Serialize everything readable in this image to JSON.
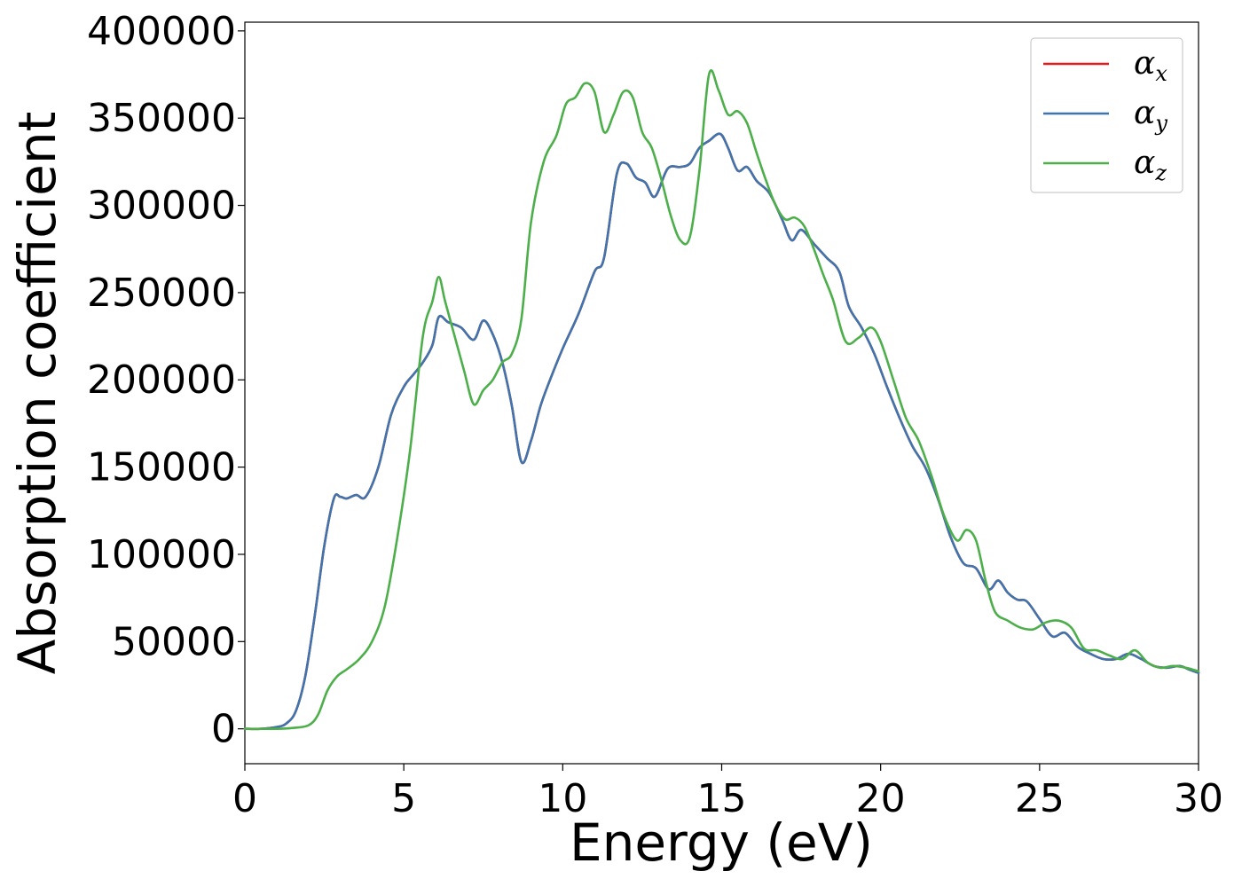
{
  "chart_data": {
    "type": "line",
    "title": "",
    "xlabel": "Energy (eV)",
    "ylabel": "Absorption coefficient",
    "xlim": [
      0,
      30
    ],
    "ylim": [
      -20000,
      405000
    ],
    "xticks": [
      0,
      5,
      10,
      15,
      20,
      25,
      30
    ],
    "xtick_labels": [
      "0",
      "5",
      "10",
      "15",
      "20",
      "25",
      "30"
    ],
    "yticks": [
      0,
      50000,
      100000,
      150000,
      200000,
      250000,
      300000,
      350000,
      400000
    ],
    "ytick_labels": [
      "0",
      "50000",
      "100000",
      "150000",
      "200000",
      "250000",
      "300000",
      "350000",
      "400000"
    ],
    "grid": false,
    "legend_position": "top-right",
    "series": [
      {
        "name": "αx",
        "symbol": "α",
        "subscript": "x",
        "color": "#e41a1c",
        "x": [
          0,
          0.5,
          1,
          1.3,
          1.6,
          1.9,
          2.2,
          2.5,
          2.8,
          3.0,
          3.2,
          3.5,
          3.8,
          4.2,
          4.6,
          5.0,
          5.3,
          5.6,
          5.9,
          6.1,
          6.4,
          6.8,
          7.2,
          7.5,
          7.8,
          8.1,
          8.4,
          8.7,
          9.0,
          9.3,
          9.6,
          10.0,
          10.5,
          11.0,
          11.3,
          11.7,
          12.0,
          12.3,
          12.6,
          12.9,
          13.3,
          13.7,
          14.0,
          14.3,
          14.6,
          14.95,
          15.2,
          15.5,
          15.8,
          16.1,
          16.5,
          16.9,
          17.2,
          17.5,
          17.9,
          18.3,
          18.7,
          19.0,
          19.4,
          19.8,
          20.2,
          20.6,
          21.0,
          21.4,
          21.8,
          22.2,
          22.6,
          23.0,
          23.4,
          23.7,
          24.0,
          24.3,
          24.6,
          25.0,
          25.4,
          25.8,
          26.2,
          26.6,
          27.0,
          27.4,
          27.8,
          28.2,
          28.6,
          29.0,
          29.4,
          29.7,
          30.0
        ],
        "y": [
          0,
          0,
          1000,
          3000,
          10000,
          30000,
          65000,
          105000,
          132000,
          133000,
          132000,
          134000,
          133000,
          150000,
          180000,
          196000,
          203000,
          210000,
          220000,
          236000,
          233000,
          230000,
          223000,
          234000,
          226000,
          210000,
          185000,
          153000,
          165000,
          185000,
          200000,
          218000,
          238000,
          262000,
          270000,
          318000,
          324000,
          316000,
          313000,
          305000,
          321000,
          322000,
          324000,
          333000,
          337000,
          341000,
          333000,
          320000,
          322000,
          314000,
          307000,
          292000,
          280000,
          286000,
          278000,
          270000,
          262000,
          242000,
          230000,
          215000,
          196000,
          178000,
          162000,
          150000,
          132000,
          110000,
          95000,
          92000,
          80000,
          85000,
          78000,
          74000,
          73000,
          63000,
          53000,
          55000,
          47000,
          43000,
          40000,
          40000,
          43000,
          40000,
          36000,
          35000,
          36000,
          34000,
          32000
        ]
      },
      {
        "name": "αy",
        "symbol": "α",
        "subscript": "y",
        "color": "#3f74ad",
        "x": [
          0,
          0.5,
          1,
          1.3,
          1.6,
          1.9,
          2.2,
          2.5,
          2.8,
          3.0,
          3.2,
          3.5,
          3.8,
          4.2,
          4.6,
          5.0,
          5.3,
          5.6,
          5.9,
          6.1,
          6.4,
          6.8,
          7.2,
          7.5,
          7.8,
          8.1,
          8.4,
          8.7,
          9.0,
          9.3,
          9.6,
          10.0,
          10.5,
          11.0,
          11.3,
          11.7,
          12.0,
          12.3,
          12.6,
          12.9,
          13.3,
          13.7,
          14.0,
          14.3,
          14.6,
          14.95,
          15.2,
          15.5,
          15.8,
          16.1,
          16.5,
          16.9,
          17.2,
          17.5,
          17.9,
          18.3,
          18.7,
          19.0,
          19.4,
          19.8,
          20.2,
          20.6,
          21.0,
          21.4,
          21.8,
          22.2,
          22.6,
          23.0,
          23.4,
          23.7,
          24.0,
          24.3,
          24.6,
          25.0,
          25.4,
          25.8,
          26.2,
          26.6,
          27.0,
          27.4,
          27.8,
          28.2,
          28.6,
          29.0,
          29.4,
          29.7,
          30.0
        ],
        "y": [
          0,
          0,
          1000,
          3000,
          10000,
          30000,
          65000,
          105000,
          132000,
          133000,
          132000,
          134000,
          133000,
          150000,
          180000,
          196000,
          203000,
          210000,
          220000,
          236000,
          233000,
          230000,
          223000,
          234000,
          226000,
          210000,
          185000,
          153000,
          165000,
          185000,
          200000,
          218000,
          238000,
          262000,
          270000,
          318000,
          324000,
          316000,
          313000,
          305000,
          321000,
          322000,
          324000,
          333000,
          337000,
          341000,
          333000,
          320000,
          322000,
          314000,
          307000,
          292000,
          280000,
          286000,
          278000,
          270000,
          262000,
          242000,
          230000,
          215000,
          196000,
          178000,
          162000,
          150000,
          132000,
          110000,
          95000,
          92000,
          80000,
          85000,
          78000,
          74000,
          73000,
          63000,
          53000,
          55000,
          47000,
          43000,
          40000,
          40000,
          43000,
          40000,
          36000,
          35000,
          36000,
          34000,
          32000
        ]
      },
      {
        "name": "αz",
        "symbol": "α",
        "subscript": "z",
        "color": "#4daf4a",
        "x": [
          0,
          1,
          1.5,
          2.0,
          2.3,
          2.6,
          2.9,
          3.2,
          3.6,
          4.0,
          4.4,
          4.8,
          5.2,
          5.6,
          5.9,
          6.1,
          6.3,
          6.6,
          6.9,
          7.2,
          7.5,
          7.8,
          8.1,
          8.4,
          8.7,
          9.0,
          9.4,
          9.8,
          10.1,
          10.4,
          10.7,
          11.0,
          11.3,
          11.6,
          11.9,
          12.2,
          12.5,
          12.8,
          13.1,
          13.4,
          13.7,
          14.0,
          14.3,
          14.6,
          14.9,
          15.2,
          15.5,
          15.8,
          16.1,
          16.4,
          16.7,
          17.0,
          17.3,
          17.6,
          17.9,
          18.2,
          18.5,
          18.9,
          19.3,
          19.7,
          20.0,
          20.4,
          20.8,
          21.2,
          21.6,
          22.0,
          22.4,
          22.7,
          23.0,
          23.3,
          23.6,
          24.0,
          24.4,
          24.8,
          25.2,
          25.6,
          26.0,
          26.4,
          26.8,
          27.2,
          27.6,
          28.0,
          28.4,
          28.8,
          29.2,
          29.6,
          30.0
        ],
        "y": [
          0,
          0,
          500,
          2000,
          8000,
          22000,
          30000,
          34000,
          40000,
          50000,
          70000,
          110000,
          160000,
          225000,
          245000,
          259000,
          245000,
          225000,
          205000,
          186000,
          194000,
          200000,
          210000,
          215000,
          235000,
          290000,
          325000,
          340000,
          358000,
          362000,
          370000,
          365000,
          342000,
          352000,
          365000,
          362000,
          342000,
          333000,
          315000,
          294000,
          280000,
          282000,
          320000,
          375000,
          366000,
          352000,
          354000,
          347000,
          330000,
          314000,
          300000,
          292000,
          293000,
          288000,
          275000,
          260000,
          246000,
          222000,
          224000,
          230000,
          222000,
          200000,
          178000,
          165000,
          145000,
          122000,
          108000,
          114000,
          108000,
          85000,
          67000,
          62000,
          58000,
          57000,
          61000,
          62000,
          58000,
          46000,
          45000,
          42000,
          40000,
          45000,
          38000,
          35000,
          36000,
          35000,
          33000
        ]
      }
    ]
  }
}
